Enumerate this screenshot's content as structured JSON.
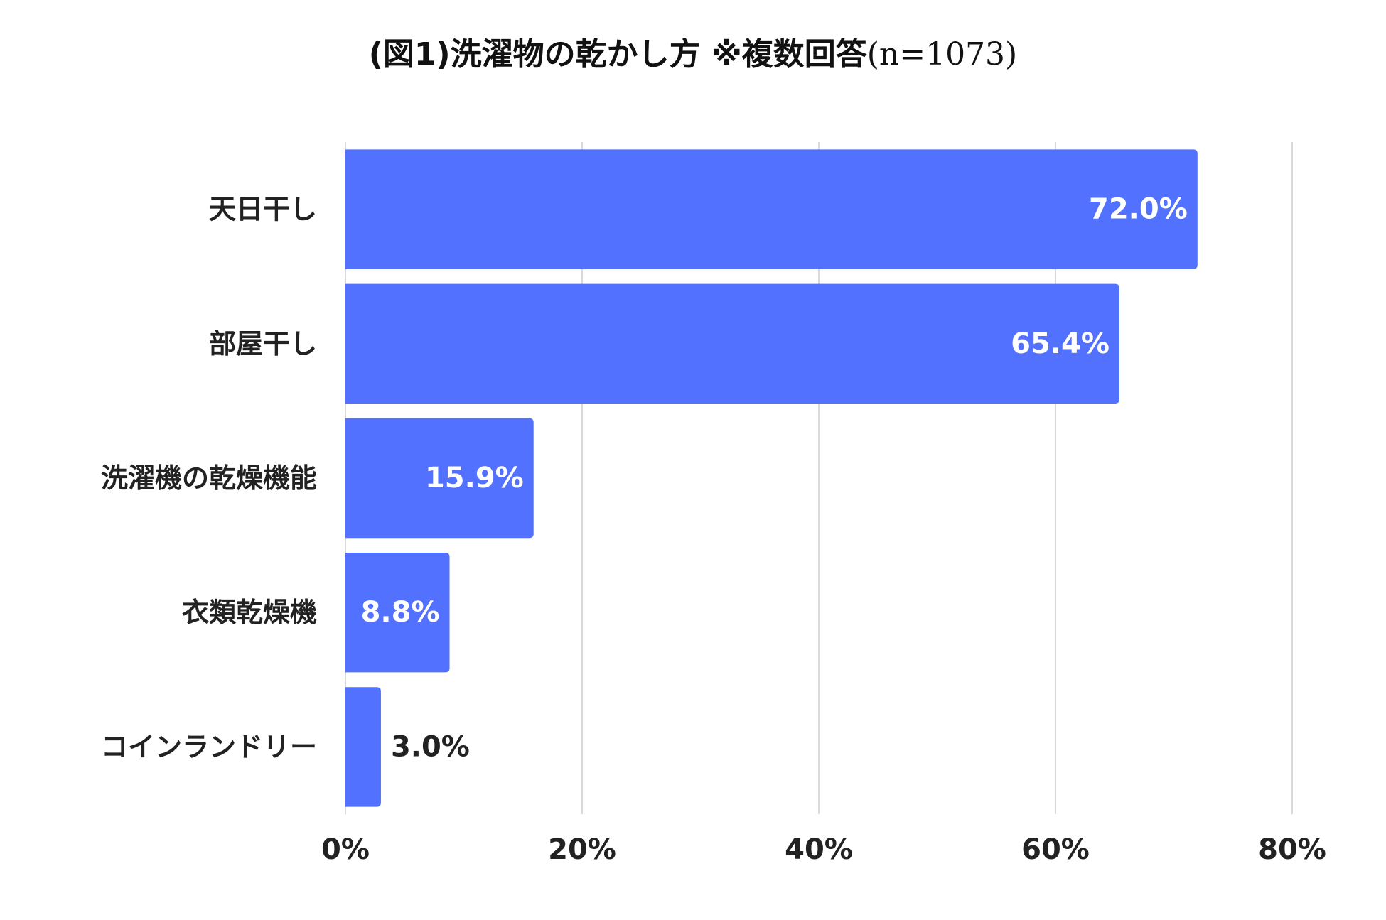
{
  "chart_data": {
    "type": "bar",
    "orientation": "horizontal",
    "title": "(図1)洗濯物の乾かし方 ※複数回答",
    "subtitle": "(n=1073)",
    "categories": [
      "天日干し",
      "部屋干し",
      "洗濯機の乾燥機能",
      "衣類乾燥機",
      "コインランドリー"
    ],
    "values": [
      72.0,
      65.4,
      15.9,
      8.8,
      3.0
    ],
    "value_labels": [
      "72.0%",
      "65.4%",
      "15.9%",
      "8.8%",
      "3.0%"
    ],
    "xlim": [
      0,
      80
    ],
    "xticks": [
      0,
      20,
      40,
      60,
      80
    ],
    "xtick_labels": [
      "0%",
      "20%",
      "40%",
      "60%",
      "80%"
    ],
    "xlabel": "",
    "ylabel": "",
    "grid": "vertical",
    "legend": "none",
    "colors": {
      "bar": "#5271ff",
      "grid": "#d9d9d9",
      "label_inside": "#ffffff",
      "label_outside": "#222222",
      "text": "#222222"
    }
  }
}
